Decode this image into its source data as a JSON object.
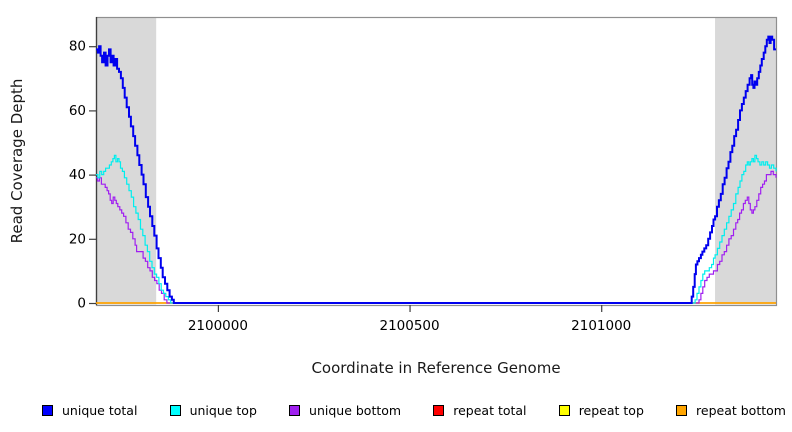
{
  "chart_data": {
    "type": "line",
    "title": "",
    "xlabel": "Coordinate in Reference Genome",
    "ylabel": "Read Coverage Depth",
    "xlim": [
      2099682,
      2101456
    ],
    "ylim": [
      0,
      89
    ],
    "grid": false,
    "legend_position": "bottom",
    "band_color": "#d9d9d9",
    "box_color": "#8f8f8f",
    "axis_color": "#3f3f3f",
    "x_ticks": [
      2100000,
      2100500,
      2101000
    ],
    "x_tick_labels": [
      "2100000",
      "2100500",
      "2101000"
    ],
    "y_ticks": [
      0,
      20,
      40,
      60,
      80
    ],
    "y_tick_labels": [
      "0",
      "20",
      "40",
      "60",
      "80"
    ],
    "highlight_regions": [
      {
        "x0": 2099682,
        "x1": 2099839
      },
      {
        "x0": 2101297,
        "x1": 2101456
      }
    ],
    "series": [
      {
        "name": "repeat total",
        "color": "#ff0000",
        "width": 1.2,
        "points": [
          [
            2099682,
            0
          ],
          [
            2101456,
            0
          ]
        ]
      },
      {
        "name": "repeat top",
        "color": "#ffff00",
        "width": 1.2,
        "points": [
          [
            2099682,
            0
          ],
          [
            2101456,
            0
          ]
        ]
      },
      {
        "name": "repeat bottom",
        "color": "#ffa500",
        "width": 1.6,
        "points": [
          [
            2099682,
            0
          ],
          [
            2101456,
            0
          ]
        ]
      },
      {
        "name": "unique bottom",
        "color": "#a020f0",
        "width": 1.2,
        "points": [
          [
            2099682,
            39
          ],
          [
            2099686,
            38
          ],
          [
            2099691,
            39
          ],
          [
            2099696,
            37
          ],
          [
            2099701,
            37
          ],
          [
            2099706,
            36
          ],
          [
            2099711,
            35
          ],
          [
            2099715,
            34
          ],
          [
            2099719,
            32
          ],
          [
            2099723,
            31
          ],
          [
            2099727,
            33
          ],
          [
            2099731,
            32
          ],
          [
            2099735,
            31
          ],
          [
            2099739,
            30
          ],
          [
            2099744,
            29
          ],
          [
            2099749,
            28
          ],
          [
            2099754,
            27
          ],
          [
            2099760,
            25
          ],
          [
            2099766,
            23
          ],
          [
            2099772,
            22
          ],
          [
            2099778,
            20
          ],
          [
            2099784,
            18
          ],
          [
            2099788,
            16
          ],
          [
            2099794,
            16
          ],
          [
            2099800,
            16
          ],
          [
            2099805,
            14
          ],
          [
            2099811,
            13
          ],
          [
            2099817,
            11
          ],
          [
            2099823,
            10
          ],
          [
            2099829,
            8
          ],
          [
            2099835,
            7
          ],
          [
            2099841,
            6
          ],
          [
            2099847,
            4
          ],
          [
            2099853,
            3
          ],
          [
            2099860,
            1
          ],
          [
            2099867,
            0
          ],
          [
            2101250,
            0
          ],
          [
            2101255,
            1
          ],
          [
            2101260,
            3
          ],
          [
            2101265,
            5
          ],
          [
            2101270,
            7
          ],
          [
            2101276,
            8
          ],
          [
            2101282,
            9
          ],
          [
            2101288,
            9
          ],
          [
            2101293,
            10
          ],
          [
            2101297,
            10
          ],
          [
            2101303,
            12
          ],
          [
            2101309,
            13
          ],
          [
            2101315,
            15
          ],
          [
            2101321,
            16
          ],
          [
            2101327,
            18
          ],
          [
            2101333,
            20
          ],
          [
            2101339,
            21
          ],
          [
            2101345,
            23
          ],
          [
            2101351,
            25
          ],
          [
            2101356,
            26
          ],
          [
            2101361,
            28
          ],
          [
            2101366,
            29
          ],
          [
            2101371,
            31
          ],
          [
            2101376,
            32
          ],
          [
            2101381,
            33
          ],
          [
            2101385,
            31
          ],
          [
            2101389,
            29
          ],
          [
            2101393,
            28
          ],
          [
            2101397,
            29
          ],
          [
            2101401,
            30
          ],
          [
            2101406,
            32
          ],
          [
            2101411,
            34
          ],
          [
            2101416,
            36
          ],
          [
            2101421,
            37
          ],
          [
            2101426,
            38
          ],
          [
            2101431,
            40
          ],
          [
            2101437,
            40
          ],
          [
            2101443,
            41
          ],
          [
            2101449,
            40
          ],
          [
            2101456,
            39
          ]
        ]
      },
      {
        "name": "unique top",
        "color": "#00eeee",
        "width": 1.2,
        "points": [
          [
            2099682,
            40
          ],
          [
            2099687,
            39
          ],
          [
            2099692,
            41
          ],
          [
            2099697,
            40
          ],
          [
            2099702,
            41
          ],
          [
            2099707,
            42
          ],
          [
            2099712,
            42
          ],
          [
            2099717,
            43
          ],
          [
            2099722,
            44
          ],
          [
            2099726,
            45
          ],
          [
            2099730,
            46
          ],
          [
            2099734,
            44
          ],
          [
            2099738,
            45
          ],
          [
            2099742,
            44
          ],
          [
            2099746,
            42
          ],
          [
            2099751,
            41
          ],
          [
            2099756,
            39
          ],
          [
            2099762,
            37
          ],
          [
            2099768,
            35
          ],
          [
            2099774,
            33
          ],
          [
            2099780,
            30
          ],
          [
            2099786,
            28
          ],
          [
            2099792,
            26
          ],
          [
            2099798,
            23
          ],
          [
            2099804,
            21
          ],
          [
            2099810,
            18
          ],
          [
            2099816,
            16
          ],
          [
            2099822,
            13
          ],
          [
            2099828,
            11
          ],
          [
            2099834,
            9
          ],
          [
            2099840,
            8
          ],
          [
            2099846,
            6
          ],
          [
            2099852,
            4
          ],
          [
            2099858,
            3
          ],
          [
            2099864,
            2
          ],
          [
            2099871,
            1
          ],
          [
            2099877,
            0
          ],
          [
            2101240,
            0
          ],
          [
            2101245,
            1
          ],
          [
            2101250,
            3
          ],
          [
            2101255,
            5
          ],
          [
            2101260,
            7
          ],
          [
            2101265,
            9
          ],
          [
            2101270,
            10
          ],
          [
            2101276,
            10
          ],
          [
            2101282,
            11
          ],
          [
            2101288,
            12
          ],
          [
            2101293,
            14
          ],
          [
            2101297,
            15
          ],
          [
            2101303,
            17
          ],
          [
            2101309,
            19
          ],
          [
            2101315,
            21
          ],
          [
            2101321,
            23
          ],
          [
            2101327,
            25
          ],
          [
            2101333,
            27
          ],
          [
            2101339,
            29
          ],
          [
            2101345,
            31
          ],
          [
            2101351,
            34
          ],
          [
            2101357,
            36
          ],
          [
            2101362,
            38
          ],
          [
            2101367,
            40
          ],
          [
            2101372,
            41
          ],
          [
            2101377,
            43
          ],
          [
            2101381,
            44
          ],
          [
            2101385,
            43
          ],
          [
            2101389,
            44
          ],
          [
            2101393,
            45
          ],
          [
            2101397,
            44
          ],
          [
            2101401,
            46
          ],
          [
            2101405,
            45
          ],
          [
            2101409,
            44
          ],
          [
            2101414,
            43
          ],
          [
            2101419,
            44
          ],
          [
            2101424,
            43
          ],
          [
            2101429,
            44
          ],
          [
            2101434,
            43
          ],
          [
            2101439,
            42
          ],
          [
            2101444,
            43
          ],
          [
            2101450,
            42
          ],
          [
            2101456,
            41
          ]
        ]
      },
      {
        "name": "unique total",
        "color": "#0000ee",
        "width": 2,
        "points": [
          [
            2099682,
            79
          ],
          [
            2099687,
            78
          ],
          [
            2099690,
            80
          ],
          [
            2099694,
            77
          ],
          [
            2099698,
            75
          ],
          [
            2099703,
            78
          ],
          [
            2099707,
            74
          ],
          [
            2099712,
            77
          ],
          [
            2099716,
            79
          ],
          [
            2099720,
            75
          ],
          [
            2099724,
            77
          ],
          [
            2099728,
            74
          ],
          [
            2099732,
            76
          ],
          [
            2099737,
            73
          ],
          [
            2099742,
            72
          ],
          [
            2099747,
            70
          ],
          [
            2099752,
            67
          ],
          [
            2099757,
            64
          ],
          [
            2099762,
            61
          ],
          [
            2099768,
            58
          ],
          [
            2099773,
            55
          ],
          [
            2099779,
            52
          ],
          [
            2099784,
            49
          ],
          [
            2099790,
            46
          ],
          [
            2099795,
            43
          ],
          [
            2099801,
            40
          ],
          [
            2099806,
            37
          ],
          [
            2099812,
            33
          ],
          [
            2099818,
            30
          ],
          [
            2099823,
            27
          ],
          [
            2099829,
            24
          ],
          [
            2099834,
            21
          ],
          [
            2099840,
            17
          ],
          [
            2099845,
            14
          ],
          [
            2099851,
            11
          ],
          [
            2099856,
            8
          ],
          [
            2099862,
            6
          ],
          [
            2099868,
            4
          ],
          [
            2099874,
            2
          ],
          [
            2099880,
            1
          ],
          [
            2099885,
            0
          ],
          [
            2101232,
            0
          ],
          [
            2101236,
            2
          ],
          [
            2101240,
            5
          ],
          [
            2101244,
            9
          ],
          [
            2101247,
            12
          ],
          [
            2101251,
            13
          ],
          [
            2101255,
            14
          ],
          [
            2101260,
            15
          ],
          [
            2101264,
            16
          ],
          [
            2101269,
            17
          ],
          [
            2101274,
            18
          ],
          [
            2101279,
            20
          ],
          [
            2101284,
            22
          ],
          [
            2101289,
            24
          ],
          [
            2101293,
            26
          ],
          [
            2101297,
            27
          ],
          [
            2101302,
            30
          ],
          [
            2101307,
            32
          ],
          [
            2101312,
            34
          ],
          [
            2101317,
            37
          ],
          [
            2101322,
            39
          ],
          [
            2101327,
            42
          ],
          [
            2101332,
            44
          ],
          [
            2101337,
            47
          ],
          [
            2101342,
            49
          ],
          [
            2101347,
            52
          ],
          [
            2101352,
            54
          ],
          [
            2101357,
            57
          ],
          [
            2101362,
            60
          ],
          [
            2101367,
            62
          ],
          [
            2101372,
            64
          ],
          [
            2101377,
            66
          ],
          [
            2101382,
            68
          ],
          [
            2101387,
            70
          ],
          [
            2101391,
            71
          ],
          [
            2101394,
            68
          ],
          [
            2101397,
            67
          ],
          [
            2101400,
            69
          ],
          [
            2101404,
            68
          ],
          [
            2101407,
            70
          ],
          [
            2101411,
            72
          ],
          [
            2101415,
            74
          ],
          [
            2101419,
            76
          ],
          [
            2101424,
            78
          ],
          [
            2101428,
            80
          ],
          [
            2101432,
            82
          ],
          [
            2101436,
            83
          ],
          [
            2101439,
            81
          ],
          [
            2101442,
            83
          ],
          [
            2101446,
            82
          ],
          [
            2101451,
            79
          ],
          [
            2101456,
            79
          ]
        ]
      }
    ],
    "legend": [
      {
        "label": "unique total",
        "color": "#0000ff"
      },
      {
        "label": "unique top",
        "color": "#00ffff"
      },
      {
        "label": "unique bottom",
        "color": "#a020f0"
      },
      {
        "label": "repeat total",
        "color": "#ff0000"
      },
      {
        "label": "repeat top",
        "color": "#ffff00"
      },
      {
        "label": "repeat bottom",
        "color": "#ffa500"
      }
    ]
  }
}
